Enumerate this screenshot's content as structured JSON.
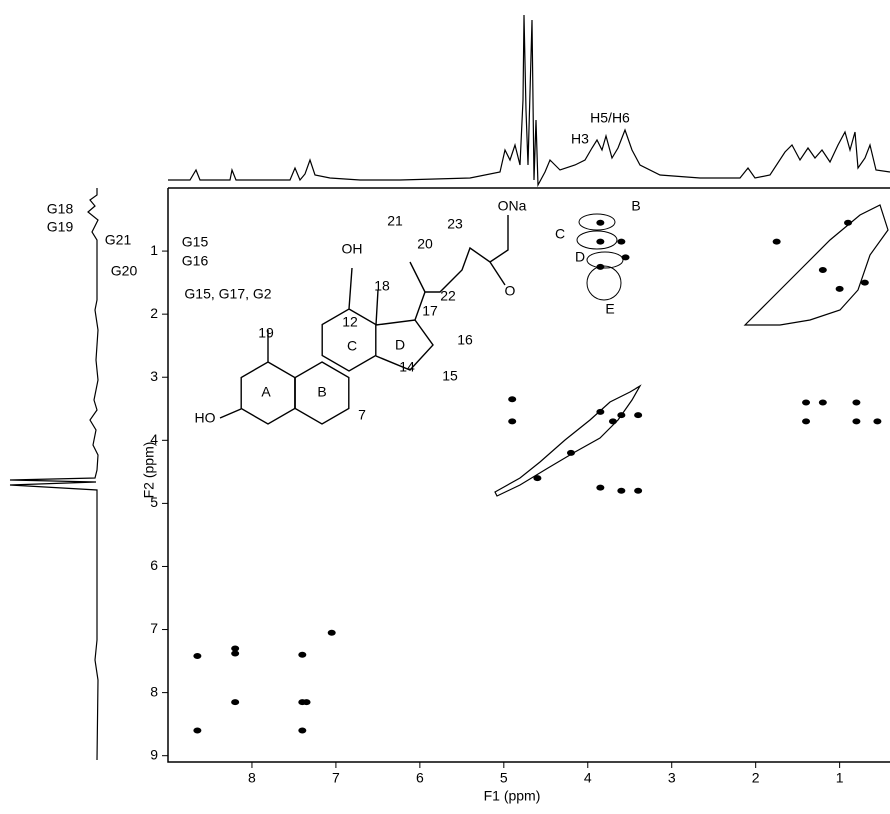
{
  "chart_data": {
    "type": "scatter",
    "x_label": "F1 (ppm)",
    "y_label": "F2 (ppm)",
    "xlim": [
      9,
      0.4
    ],
    "ylim": [
      0,
      9.1
    ],
    "xticks": [
      8,
      7,
      6,
      5,
      4,
      3,
      2,
      1
    ],
    "yticks": [
      1,
      2,
      3,
      4,
      5,
      6,
      7,
      8,
      9
    ],
    "color": "#000000",
    "x": [
      8.65,
      8.2,
      8.2,
      7.4,
      7.35,
      8.65,
      8.2,
      7.4,
      7.4,
      7.05,
      4.9,
      4.9,
      3.85,
      3.6,
      3.4,
      3.85,
      3.6,
      3.4,
      1.4,
      1.2,
      0.8,
      1.4,
      0.8,
      0.55,
      3.85,
      3.85,
      3.85,
      3.6,
      3.55,
      1.75,
      1.2,
      1.0,
      0.7,
      0.9,
      4.6,
      4.2,
      3.7
    ],
    "y": [
      7.42,
      7.3,
      7.38,
      8.15,
      8.15,
      8.6,
      8.15,
      8.6,
      7.4,
      7.05,
      3.35,
      3.7,
      4.75,
      4.8,
      4.8,
      3.55,
      3.6,
      3.6,
      3.4,
      3.4,
      3.4,
      3.7,
      3.7,
      3.7,
      0.55,
      0.85,
      1.25,
      0.85,
      1.1,
      0.85,
      1.3,
      1.6,
      1.5,
      0.55,
      4.6,
      4.2,
      3.7
    ],
    "annotations": [
      "H3",
      "H5/H6",
      "G18",
      "G19",
      "G21",
      "G15",
      "G16",
      "G20",
      "G15, G17, G2",
      "B",
      "C",
      "D",
      "E"
    ],
    "structure_labels": [
      "OH",
      "18",
      "21",
      "20",
      "23",
      "ONa",
      "22",
      "O",
      "19",
      "12",
      "C",
      "17",
      "D",
      "16",
      "A",
      "B",
      "14",
      "15",
      "7",
      "HO"
    ]
  }
}
